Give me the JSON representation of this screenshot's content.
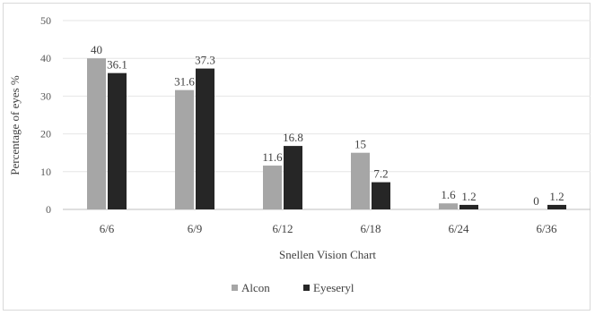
{
  "chart_data": {
    "type": "bar",
    "xlabel": "Snellen Vision Chart",
    "ylabel": "Percentage of eyes %",
    "ylim": [
      0,
      50
    ],
    "yticks": [
      0,
      10,
      20,
      30,
      40,
      50
    ],
    "grid": true,
    "legend_position": "bottom",
    "categories": [
      "6/6",
      "6/9",
      "6/12",
      "6/18",
      "6/24",
      "6/36"
    ],
    "series": [
      {
        "name": "Alcon",
        "color": "#a6a6a6",
        "values": [
          40,
          31.6,
          11.6,
          15,
          1.6,
          0
        ],
        "labels": [
          "40",
          "31.6",
          "11.6",
          "15",
          "1.6",
          "0"
        ]
      },
      {
        "name": "Eyeseryl",
        "color": "#262626",
        "values": [
          36.1,
          37.3,
          16.8,
          7.2,
          1.2,
          1.2
        ],
        "labels": [
          "36.1",
          "37.3",
          "16.8",
          "7.2",
          "1.2",
          "1.2"
        ]
      }
    ]
  }
}
